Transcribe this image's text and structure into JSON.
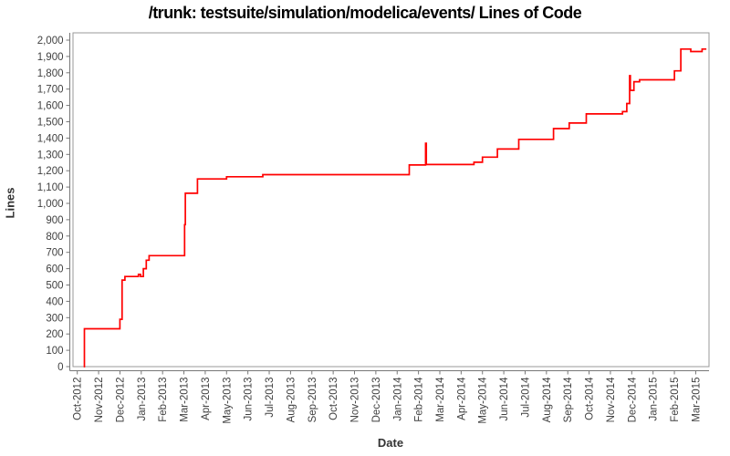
{
  "title": "/trunk: testsuite/simulation/modelica/events/ Lines of Code",
  "chart_data": {
    "type": "line",
    "step": true,
    "title": "/trunk: testsuite/simulation/modelica/events/ Lines of Code",
    "xlabel": "Date",
    "ylabel": "Lines",
    "ylim": [
      0,
      2000
    ],
    "y_tick_interval": 100,
    "grid": false,
    "legend": "none",
    "line_color": "#ff0000",
    "axis_color": "#777777",
    "frame_color": "#999999",
    "tick_label_color": "#404040",
    "x_tick_labels": [
      "Oct-2012",
      "Nov-2012",
      "Dec-2012",
      "Jan-2013",
      "Feb-2013",
      "Mar-2013",
      "Apr-2013",
      "May-2013",
      "Jun-2013",
      "Jul-2013",
      "Aug-2013",
      "Sep-2013",
      "Oct-2013",
      "Nov-2013",
      "Dec-2013",
      "Jan-2014",
      "Feb-2014",
      "Mar-2014",
      "Apr-2014",
      "May-2014",
      "Jun-2014",
      "Jul-2014",
      "Aug-2014",
      "Sep-2014",
      "Oct-2014",
      "Nov-2014",
      "Dec-2014",
      "Jan-2015",
      "Feb-2015",
      "Mar-2015"
    ],
    "series": [
      {
        "name": "Lines of Code",
        "points": [
          [
            "2012-10-10",
            0
          ],
          [
            "2012-10-11",
            232
          ],
          [
            "2012-12-01",
            290
          ],
          [
            "2012-12-04",
            530
          ],
          [
            "2012-12-08",
            552
          ],
          [
            "2012-12-27",
            565
          ],
          [
            "2012-12-30",
            552
          ],
          [
            "2013-01-04",
            600
          ],
          [
            "2013-01-08",
            652
          ],
          [
            "2013-01-12",
            680
          ],
          [
            "2013-03-02",
            870
          ],
          [
            "2013-03-03",
            1062
          ],
          [
            "2013-03-20",
            1150
          ],
          [
            "2013-05-01",
            1163
          ],
          [
            "2013-06-22",
            1176
          ],
          [
            "2014-01-18",
            1235
          ],
          [
            "2014-02-11",
            1368
          ],
          [
            "2014-02-12",
            1238
          ],
          [
            "2014-04-19",
            1252
          ],
          [
            "2014-05-01",
            1283
          ],
          [
            "2014-05-22",
            1333
          ],
          [
            "2014-06-22",
            1392
          ],
          [
            "2014-08-11",
            1458
          ],
          [
            "2014-09-03",
            1492
          ],
          [
            "2014-09-27",
            1548
          ],
          [
            "2014-11-18",
            1562
          ],
          [
            "2014-11-24",
            1612
          ],
          [
            "2014-11-28",
            1782
          ],
          [
            "2014-11-29",
            1692
          ],
          [
            "2014-12-04",
            1745
          ],
          [
            "2014-12-12",
            1757
          ],
          [
            "2015-02-01",
            1812
          ],
          [
            "2015-02-10",
            1945
          ],
          [
            "2015-02-24",
            1930
          ],
          [
            "2015-03-10",
            1945
          ],
          [
            "2015-03-16",
            1945
          ]
        ]
      }
    ]
  }
}
